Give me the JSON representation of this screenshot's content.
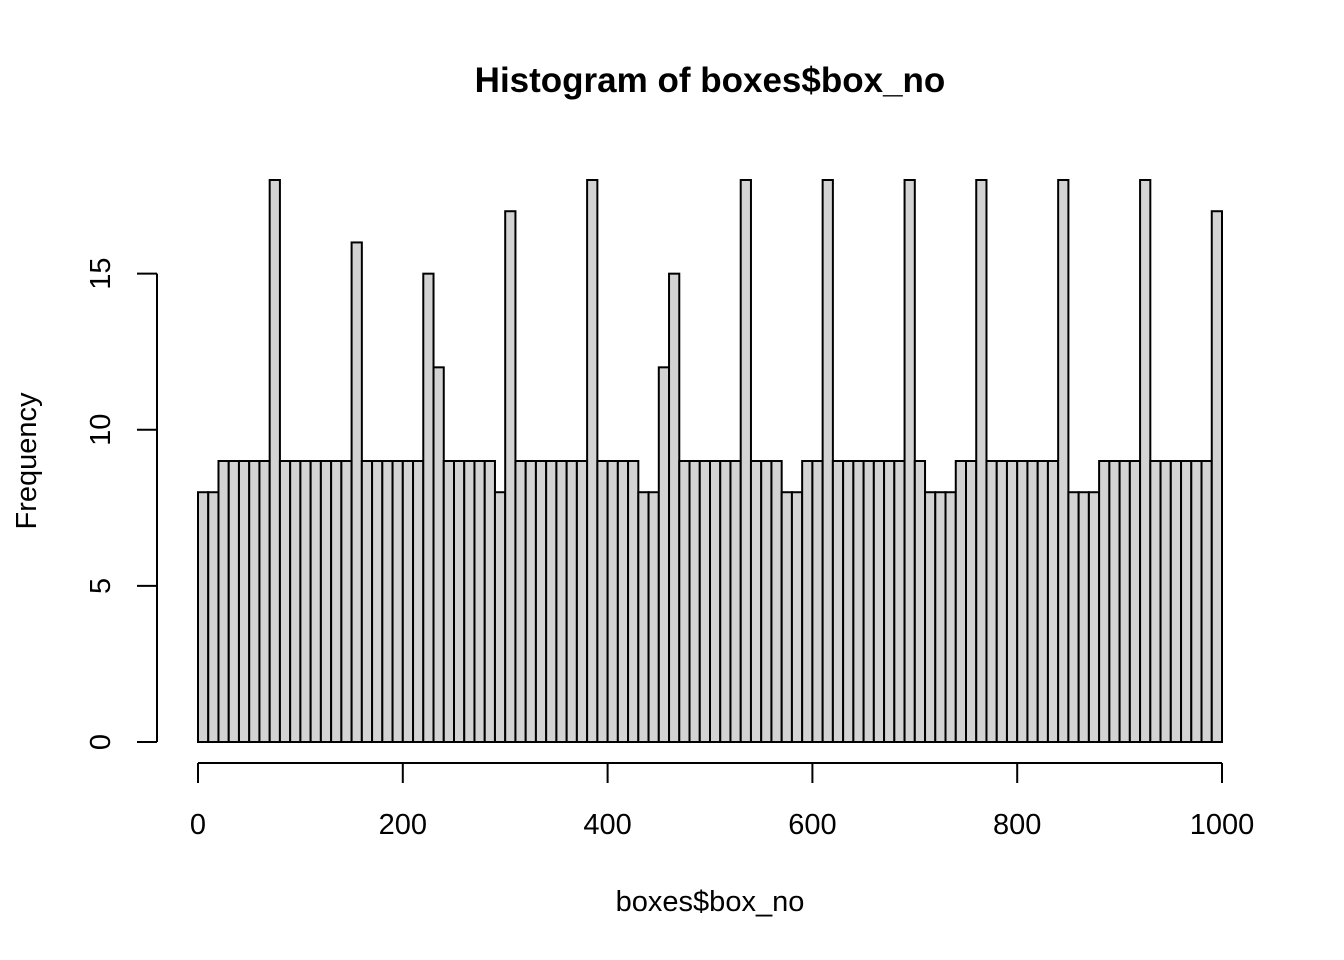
{
  "chart_data": {
    "type": "bar",
    "subtype": "histogram",
    "title": "Histogram of boxes$box_no",
    "xlabel": "boxes$box_no",
    "ylabel": "Frequency",
    "bin_width": 10,
    "bin_start": 0,
    "bin_end": 1000,
    "values": [
      8,
      8,
      9,
      9,
      9,
      9,
      9,
      18,
      9,
      9,
      9,
      9,
      9,
      9,
      9,
      16,
      9,
      9,
      9,
      9,
      9,
      9,
      15,
      12,
      9,
      9,
      9,
      9,
      9,
      8,
      17,
      9,
      9,
      9,
      9,
      9,
      9,
      9,
      18,
      9,
      9,
      9,
      9,
      8,
      8,
      12,
      15,
      9,
      9,
      9,
      9,
      9,
      9,
      18,
      9,
      9,
      9,
      8,
      8,
      9,
      9,
      18,
      9,
      9,
      9,
      9,
      9,
      9,
      9,
      18,
      9,
      8,
      8,
      8,
      9,
      9,
      18,
      9,
      9,
      9,
      9,
      9,
      9,
      9,
      18,
      8,
      8,
      8,
      9,
      9,
      9,
      9,
      18,
      9,
      9,
      9,
      9,
      9,
      9,
      17
    ],
    "xlim": [
      0,
      1000
    ],
    "ylim": [
      0,
      18
    ],
    "x_ticks": [
      0,
      200,
      400,
      600,
      800,
      1000
    ],
    "y_ticks": [
      0,
      5,
      10,
      15
    ],
    "grid": false,
    "legend": "none",
    "colors": {
      "bar_fill": "#d3d3d3",
      "bar_stroke": "#000000",
      "axis": "#000000",
      "background": "#ffffff"
    }
  }
}
